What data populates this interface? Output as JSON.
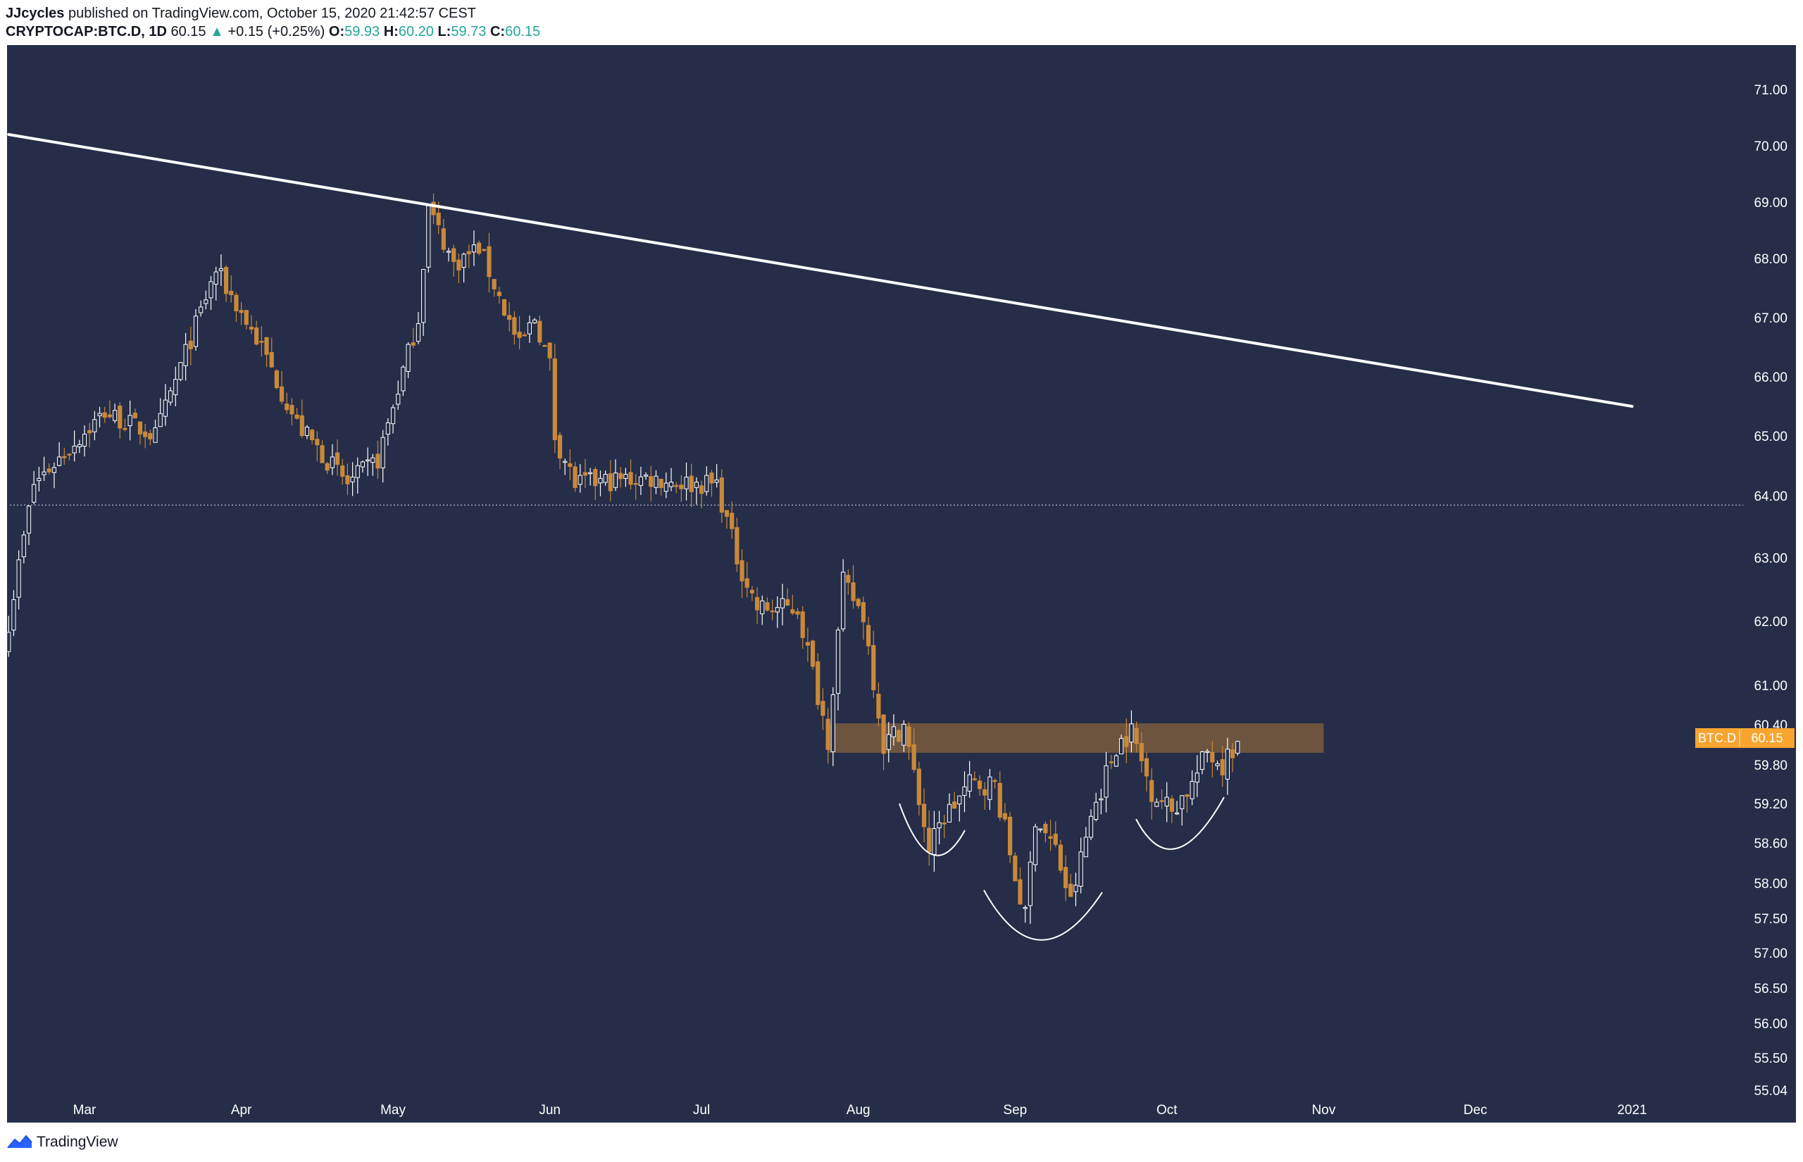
{
  "header": {
    "author": "JJcycles",
    "published": "published on TradingView.com, October 15, 2020 21:42:57 CEST",
    "symbol": "CRYPTOCAP:BTC.D, 1D",
    "price": "60.15",
    "change": "+0.15 (+0.25%)",
    "open_label": "O:",
    "open": "59.93",
    "high_label": "H:",
    "high": "60.20",
    "low_label": "L:",
    "low": "59.73",
    "close_label": "C:",
    "close": "60.15"
  },
  "footer": {
    "brand": "TradingView"
  },
  "colors": {
    "background": "#252d48",
    "up": "#ffffff",
    "down": "#c9893a",
    "trendline": "#ffffff",
    "zone": "#7a5c3e",
    "price_tag": "#f7a530",
    "axis_text": "#ffffff"
  },
  "chart_data": {
    "type": "candlestick",
    "symbol_tag": "BTC.D",
    "last_price": 60.15,
    "y_axis": {
      "ticks": [
        71.0,
        70.0,
        69.0,
        68.0,
        67.0,
        66.0,
        65.0,
        64.0,
        63.0,
        62.0,
        61.0,
        60.4,
        59.8,
        59.2,
        58.6,
        58.0,
        57.5,
        57.0,
        56.5,
        56.0,
        55.5,
        55.04
      ],
      "tick_labels": [
        "71.00",
        "70.00",
        "69.00",
        "68.00",
        "67.00",
        "66.00",
        "65.00",
        "64.00",
        "63.00",
        "62.00",
        "61.00",
        "60.40",
        "59.80",
        "59.20",
        "58.60",
        "58.00",
        "57.50",
        "57.00",
        "56.50",
        "56.00",
        "55.50",
        "55.04"
      ]
    },
    "x_axis": {
      "ticks": [
        "2020-03-01",
        "2020-04-01",
        "2020-05-01",
        "2020-06-01",
        "2020-07-01",
        "2020-08-01",
        "2020-09-01",
        "2020-10-01",
        "2020-11-01",
        "2020-12-01",
        "2021-01-01"
      ],
      "tick_labels": [
        "Mar",
        "Apr",
        "May",
        "Jun",
        "Jul",
        "Aug",
        "Sep",
        "Oct",
        "Nov",
        "Dec",
        "2021"
      ]
    },
    "key_points": [
      {
        "date": "2020-02-15",
        "close": 62.0
      },
      {
        "date": "2020-02-20",
        "close": 64.2
      },
      {
        "date": "2020-03-05",
        "close": 65.4
      },
      {
        "date": "2020-03-15",
        "close": 65.0
      },
      {
        "date": "2020-03-27",
        "close": 67.8
      },
      {
        "date": "2020-04-05",
        "close": 66.5
      },
      {
        "date": "2020-04-12",
        "close": 65.2
      },
      {
        "date": "2020-04-22",
        "close": 64.2
      },
      {
        "date": "2020-04-28",
        "close": 64.6
      },
      {
        "date": "2020-05-06",
        "close": 67.0
      },
      {
        "date": "2020-05-08",
        "close": 68.9
      },
      {
        "date": "2020-05-13",
        "close": 67.9
      },
      {
        "date": "2020-05-18",
        "close": 68.2
      },
      {
        "date": "2020-05-26",
        "close": 66.5
      },
      {
        "date": "2020-05-29",
        "close": 67.0
      },
      {
        "date": "2020-06-01",
        "close": 66.2
      },
      {
        "date": "2020-06-02",
        "close": 65.0
      },
      {
        "date": "2020-06-06",
        "close": 64.2
      },
      {
        "date": "2020-06-20",
        "close": 64.3
      },
      {
        "date": "2020-06-29",
        "close": 64.2
      },
      {
        "date": "2020-07-04",
        "close": 64.2
      },
      {
        "date": "2020-07-08",
        "close": 63.0
      },
      {
        "date": "2020-07-12",
        "close": 62.2
      },
      {
        "date": "2020-07-20",
        "close": 62.2
      },
      {
        "date": "2020-07-26",
        "close": 60.2
      },
      {
        "date": "2020-07-29",
        "close": 62.6
      },
      {
        "date": "2020-08-02",
        "close": 62.1
      },
      {
        "date": "2020-08-06",
        "close": 60.1
      },
      {
        "date": "2020-08-10",
        "close": 60.4
      },
      {
        "date": "2020-08-15",
        "close": 58.5
      },
      {
        "date": "2020-08-18",
        "close": 59.0
      },
      {
        "date": "2020-08-23",
        "close": 59.5
      },
      {
        "date": "2020-08-28",
        "close": 59.5
      },
      {
        "date": "2020-09-01",
        "close": 58.1
      },
      {
        "date": "2020-09-03",
        "close": 57.5
      },
      {
        "date": "2020-09-05",
        "close": 59.0
      },
      {
        "date": "2020-09-09",
        "close": 58.5
      },
      {
        "date": "2020-09-12",
        "close": 57.7
      },
      {
        "date": "2020-09-16",
        "close": 59.0
      },
      {
        "date": "2020-09-21",
        "close": 60.1
      },
      {
        "date": "2020-09-24",
        "close": 60.3
      },
      {
        "date": "2020-09-28",
        "close": 59.4
      },
      {
        "date": "2020-10-02",
        "close": 59.1
      },
      {
        "date": "2020-10-06",
        "close": 59.5
      },
      {
        "date": "2020-10-09",
        "close": 60.0
      },
      {
        "date": "2020-10-12",
        "close": 59.8
      },
      {
        "date": "2020-10-15",
        "close": 60.15
      }
    ],
    "trendline": {
      "start_date": "2020-02-15",
      "start_value": 70.2,
      "end_date": "2021-01-01",
      "end_value": 65.5
    },
    "horizontal_line": 63.85,
    "resistance_zone": {
      "start_date": "2020-07-26",
      "end_date": "2020-11-01",
      "low": 59.98,
      "high": 60.42
    }
  }
}
